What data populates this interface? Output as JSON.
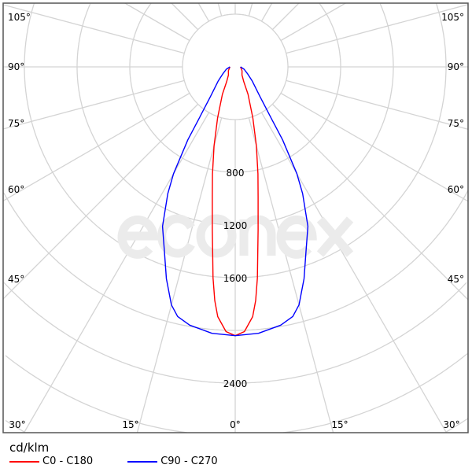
{
  "chart_data": {
    "type": "polar",
    "title": "",
    "unit": "cd/klm",
    "watermark": "econex",
    "radial_ticks": [
      800,
      1200,
      1600,
      2400
    ],
    "radial_step": 400,
    "angle_labels_left": [
      "105°",
      "90°",
      "75°",
      "60°",
      "45°"
    ],
    "angle_labels_bottom": [
      "30°",
      "15°",
      "0°",
      "15°",
      "30°"
    ],
    "angle_labels_right": [
      "105°",
      "90°",
      "75°",
      "60°",
      "45°"
    ],
    "series": [
      {
        "name": "C0 - C180",
        "color": "#ff0000",
        "angles": [
          0,
          2,
          4,
          5,
          6,
          8,
          10,
          12,
          15,
          19,
          25,
          30,
          40,
          60,
          90
        ],
        "values": [
          2040,
          2010,
          1900,
          1780,
          1610,
          1250,
          1000,
          830,
          620,
          410,
          230,
          130,
          80,
          60,
          40
        ]
      },
      {
        "name": "C90 - C270",
        "color": "#0000ff",
        "angles": [
          0,
          5,
          10,
          13,
          15,
          18,
          21,
          24.5,
          28,
          30,
          33,
          35,
          40,
          50,
          60,
          75,
          90
        ],
        "values": [
          2040,
          2030,
          1990,
          1944,
          1870,
          1690,
          1500,
          1330,
          1090,
          936,
          660,
          480,
          290,
          170,
          110,
          70,
          40
        ]
      }
    ]
  }
}
